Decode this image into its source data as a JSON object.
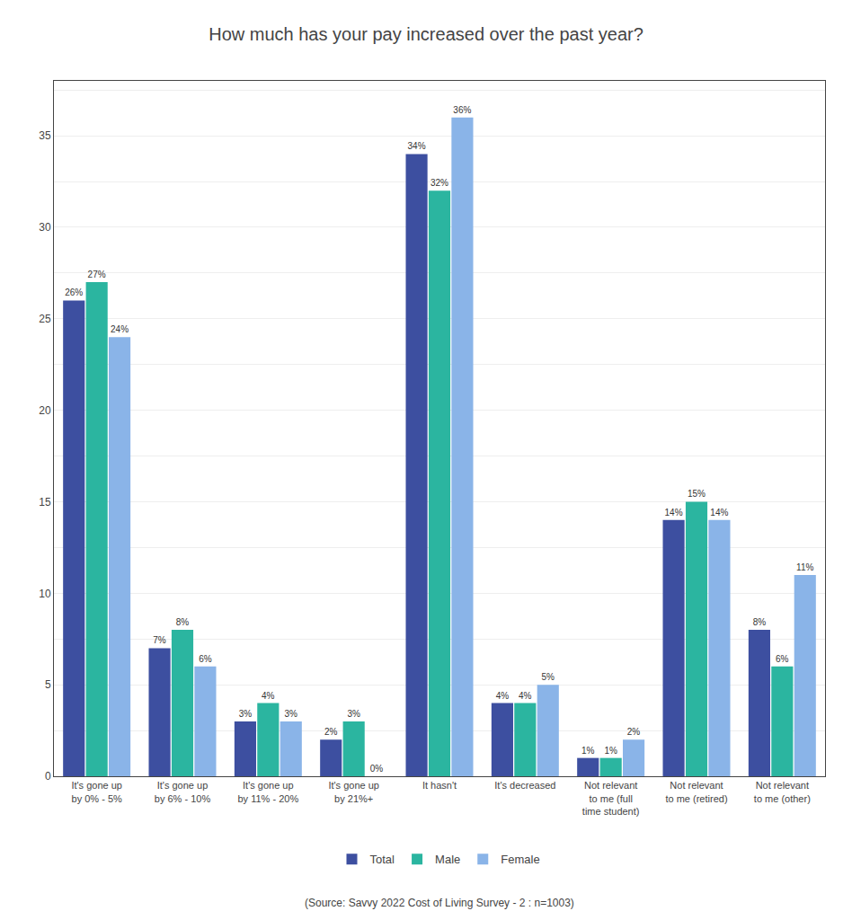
{
  "chart_data": {
    "type": "bar",
    "title": "How much has your pay increased over the past year?",
    "annotations": [
      "(Source: Savvy 2022 Cost of Living Survey - 2 : n=1003)"
    ],
    "categories": [
      "It's gone up\nby 0% - 5%",
      "It's gone up\nby 6% - 10%",
      "It's gone up\nby 11% - 20%",
      "It's gone up\nby 21%+",
      "It hasn't",
      "It's decreased",
      "Not relevant\nto me (full\ntime student)",
      "Not relevant\nto me (retired)",
      "Not relevant\nto me (other)"
    ],
    "series": [
      {
        "name": "Total",
        "color": "#3d4fa0",
        "values": [
          26,
          7,
          3,
          2,
          34,
          4,
          1,
          14,
          8
        ],
        "value_labels": [
          "26%",
          "7%",
          "3%",
          "2%",
          "34%",
          "4%",
          "1%",
          "14%",
          "8%"
        ]
      },
      {
        "name": "Male",
        "color": "#2bb5a0",
        "values": [
          27,
          8,
          4,
          3,
          32,
          4,
          1,
          15,
          6
        ],
        "value_labels": [
          "27%",
          "8%",
          "4%",
          "3%",
          "32%",
          "4%",
          "1%",
          "15%",
          "6%"
        ]
      },
      {
        "name": "Female",
        "color": "#8ab4e8",
        "values": [
          24,
          6,
          3,
          0,
          36,
          5,
          2,
          14,
          11
        ],
        "value_labels": [
          "24%",
          "6%",
          "3%",
          "0%",
          "36%",
          "5%",
          "2%",
          "14%",
          "11%"
        ]
      }
    ],
    "ylim": [
      0,
      38
    ],
    "yticks": [
      0,
      {
        "value": 2.5,
        "label": ""
      },
      5,
      {
        "value": 7.5,
        "label": ""
      },
      10,
      {
        "value": 12.5,
        "label": ""
      },
      15,
      {
        "value": 17.5,
        "label": ""
      },
      20,
      {
        "value": 22.5,
        "label": ""
      },
      25,
      {
        "value": 27.5,
        "label": ""
      },
      30,
      {
        "value": 32.5,
        "label": ""
      },
      35,
      {
        "value": 37.5,
        "label": ""
      }
    ],
    "grid": true,
    "legend": "bottom",
    "data_labels": true
  }
}
